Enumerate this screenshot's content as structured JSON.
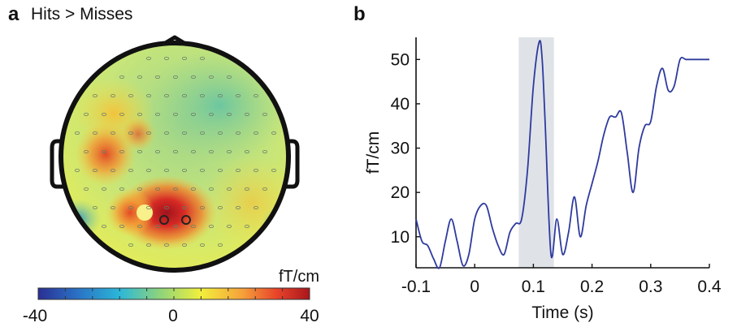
{
  "panel_a": {
    "letter": "a",
    "title": "Hits > Misses",
    "colorbar": {
      "unit_label": "fT/cm",
      "min_label": "-40",
      "mid_label": "0",
      "max_label": "40",
      "colors": [
        "#2a2f93",
        "#2a6fc4",
        "#2bb7d8",
        "#8fd47a",
        "#f2ef3c",
        "#f6a23a",
        "#e8432a",
        "#a8161c"
      ]
    }
  },
  "panel_b": {
    "letter": "b"
  },
  "chart_data": [
    {
      "type": "heatmap",
      "panel": "a",
      "title": "Hits > Misses",
      "colorbar_label": "fT/cm",
      "colorbar_range": [
        -40,
        40
      ],
      "colorbar_ticks": [
        -40,
        0,
        40
      ],
      "highlighted_sensors": 2,
      "peak_region": "left-posterior"
    },
    {
      "type": "line",
      "panel": "b",
      "xlabel": "Time (s)",
      "ylabel": "fT/cm",
      "xlim": [
        -0.1,
        0.4
      ],
      "ylim": [
        3,
        55
      ],
      "xticks": [
        -0.1,
        0,
        0.1,
        0.2,
        0.3,
        0.4
      ],
      "xtick_labels": [
        "-0.1",
        "0",
        "0.1",
        "0.2",
        "0.3",
        "0.4"
      ],
      "yticks": [
        10,
        20,
        30,
        40,
        50
      ],
      "yticks_labels": [
        "10",
        "20",
        "30",
        "40",
        "50"
      ],
      "shaded_interval": [
        0.075,
        0.135
      ],
      "line_color": "#2e3a9e",
      "shade_color": "#dfe3e8",
      "x": [
        -0.1,
        -0.09,
        -0.08,
        -0.07,
        -0.06,
        -0.05,
        -0.04,
        -0.03,
        -0.02,
        -0.01,
        0.0,
        0.01,
        0.02,
        0.03,
        0.04,
        0.05,
        0.06,
        0.07,
        0.08,
        0.09,
        0.1,
        0.11,
        0.115,
        0.12,
        0.13,
        0.14,
        0.15,
        0.16,
        0.17,
        0.18,
        0.19,
        0.2,
        0.21,
        0.22,
        0.23,
        0.24,
        0.25,
        0.26,
        0.27,
        0.28,
        0.29,
        0.3,
        0.31,
        0.32,
        0.33,
        0.34,
        0.35,
        0.36,
        0.37,
        0.38,
        0.39,
        0.4
      ],
      "y": [
        14,
        9,
        8,
        5,
        3,
        9,
        14,
        9,
        3.5,
        6,
        14,
        17,
        17,
        12,
        8,
        6,
        11,
        13,
        14,
        25,
        44,
        54,
        50,
        36,
        6,
        14,
        6,
        11,
        19,
        10,
        17,
        22,
        27,
        33,
        37,
        37,
        38,
        29,
        20,
        30,
        35,
        36,
        44,
        48,
        43,
        44,
        50,
        50,
        50,
        50,
        50,
        50
      ]
    }
  ]
}
